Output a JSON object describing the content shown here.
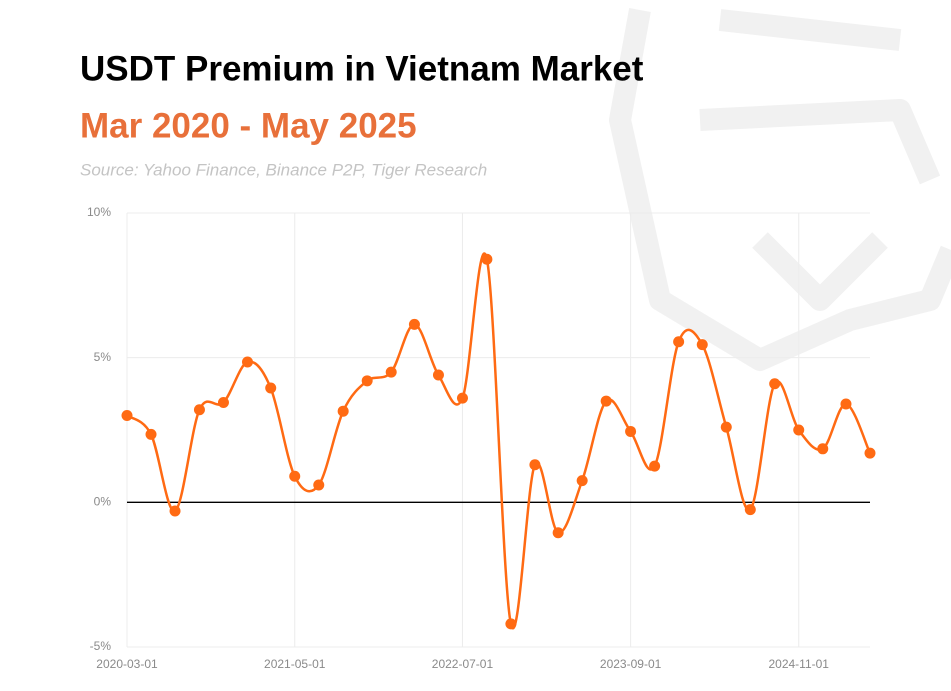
{
  "chart_data": {
    "type": "line",
    "title": "USDT Premium in Vietnam Market",
    "subtitle": "Mar 2020 - May 2025",
    "source": "Source: Yahoo Finance, Binance P2P, Tiger Research",
    "x": [
      "2020-03-01",
      "2020-05-01",
      "2020-07-01",
      "2020-09-01",
      "2020-11-01",
      "2021-01-01",
      "2021-03-01",
      "2021-05-01",
      "2021-07-01",
      "2021-09-01",
      "2021-11-01",
      "2022-01-01",
      "2022-03-01",
      "2022-05-01",
      "2022-07-01",
      "2022-09-01",
      "2022-11-01",
      "2023-01-01",
      "2023-03-01",
      "2023-05-01",
      "2023-07-01",
      "2023-09-01",
      "2023-11-01",
      "2024-01-01",
      "2024-03-01",
      "2024-05-01",
      "2024-07-01",
      "2024-09-01",
      "2024-11-01",
      "2025-01-01",
      "2025-03-01",
      "2025-05-01"
    ],
    "values": [
      3.0,
      2.35,
      -0.3,
      3.2,
      3.45,
      4.85,
      3.95,
      0.9,
      0.6,
      3.15,
      4.2,
      4.5,
      6.15,
      4.4,
      3.6,
      8.4,
      -4.2,
      1.3,
      -1.05,
      0.75,
      3.5,
      2.45,
      1.25,
      5.55,
      5.45,
      2.6,
      -0.25,
      4.1,
      2.5,
      1.85,
      3.4,
      1.7
    ],
    "color": "#ff6a13",
    "xlim": [
      "2020-03-01",
      "2025-05-01"
    ],
    "xticks": [
      "2020-03-01",
      "2021-05-01",
      "2022-07-01",
      "2023-09-01",
      "2024-11-01"
    ],
    "ylim": [
      -5,
      10
    ],
    "yticks": [
      {
        "value": -5,
        "label": "-5%"
      },
      {
        "value": 0,
        "label": "0%"
      },
      {
        "value": 5,
        "label": "5%"
      },
      {
        "value": 10,
        "label": "10%"
      }
    ],
    "grid": true
  }
}
